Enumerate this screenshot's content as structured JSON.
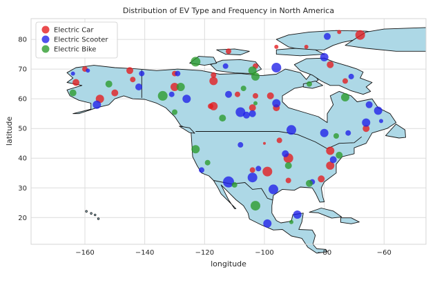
{
  "chart_data": {
    "type": "scatter",
    "title": "Distribution of EV Type and Frequency in North America",
    "xlabel": "longitude",
    "ylabel": "latitude",
    "xlim": [
      -178,
      -46
    ],
    "ylim": [
      11,
      87
    ],
    "xticks": [
      -160,
      -140,
      -120,
      -100,
      -80,
      -60
    ],
    "yticks": [
      20,
      30,
      40,
      50,
      60,
      70,
      80
    ],
    "grid": true,
    "legend_position": "top-left",
    "land_color": "#add8e6",
    "series": [
      {
        "name": "Electric Car",
        "color": "#e41a1c",
        "points": [
          {
            "lon": -68,
            "lat": 81.5,
            "size": 7
          },
          {
            "lon": -75,
            "lat": 82.5,
            "size": 3
          },
          {
            "lon": -96,
            "lat": 77.5,
            "size": 3
          },
          {
            "lon": -86,
            "lat": 77.5,
            "size": 3
          },
          {
            "lon": -112,
            "lat": 76,
            "size": 4
          },
          {
            "lon": -103,
            "lat": 71,
            "size": 4
          },
          {
            "lon": -78,
            "lat": 71.5,
            "size": 5
          },
          {
            "lon": -160,
            "lat": 70,
            "size": 4
          },
          {
            "lon": -145,
            "lat": 69.5,
            "size": 5
          },
          {
            "lon": -130,
            "lat": 68.5,
            "size": 4
          },
          {
            "lon": -117,
            "lat": 68,
            "size": 4
          },
          {
            "lon": -144,
            "lat": 66.5,
            "size": 4
          },
          {
            "lon": -117,
            "lat": 66,
            "size": 6
          },
          {
            "lon": -73,
            "lat": 66,
            "size": 4
          },
          {
            "lon": -163,
            "lat": 65.5,
            "size": 5
          },
          {
            "lon": -130,
            "lat": 64,
            "size": 6
          },
          {
            "lon": -150,
            "lat": 62,
            "size": 5
          },
          {
            "lon": -109,
            "lat": 61.5,
            "size": 4
          },
          {
            "lon": -103,
            "lat": 61,
            "size": 4
          },
          {
            "lon": -98,
            "lat": 61,
            "size": 5
          },
          {
            "lon": -155,
            "lat": 60,
            "size": 6
          },
          {
            "lon": -104,
            "lat": 57,
            "size": 5
          },
          {
            "lon": -96,
            "lat": 57,
            "size": 5
          },
          {
            "lon": -118,
            "lat": 57.5,
            "size": 4
          },
          {
            "lon": -117,
            "lat": 57.5,
            "size": 6
          },
          {
            "lon": -95,
            "lat": 46,
            "size": 4
          },
          {
            "lon": -100,
            "lat": 45,
            "size": 2
          },
          {
            "lon": -92,
            "lat": 40,
            "size": 7
          },
          {
            "lon": -78,
            "lat": 42.5,
            "size": 6
          },
          {
            "lon": -78,
            "lat": 37.5,
            "size": 6
          },
          {
            "lon": -99,
            "lat": 35.5,
            "size": 7
          },
          {
            "lon": -104,
            "lat": 36,
            "size": 4
          },
          {
            "lon": -81,
            "lat": 33,
            "size": 5
          },
          {
            "lon": -92,
            "lat": 32.5,
            "size": 4
          },
          {
            "lon": -66,
            "lat": 50,
            "size": 5
          }
        ]
      },
      {
        "name": "Electric Scooter",
        "color": "#1f1fe8",
        "points": [
          {
            "lon": -79,
            "lat": 81,
            "size": 5
          },
          {
            "lon": -80,
            "lat": 74,
            "size": 6
          },
          {
            "lon": -113,
            "lat": 71,
            "size": 4
          },
          {
            "lon": -96,
            "lat": 70.5,
            "size": 7
          },
          {
            "lon": -159,
            "lat": 69.5,
            "size": 3
          },
          {
            "lon": -164,
            "lat": 68.5,
            "size": 3
          },
          {
            "lon": -141,
            "lat": 68.5,
            "size": 4
          },
          {
            "lon": -129,
            "lat": 68.5,
            "size": 4
          },
          {
            "lon": -71,
            "lat": 67.5,
            "size": 4
          },
          {
            "lon": -142,
            "lat": 64,
            "size": 5
          },
          {
            "lon": -131,
            "lat": 61.5,
            "size": 4
          },
          {
            "lon": -126,
            "lat": 60,
            "size": 6
          },
          {
            "lon": -112,
            "lat": 61.5,
            "size": 5
          },
          {
            "lon": -96,
            "lat": 58.5,
            "size": 6
          },
          {
            "lon": -156,
            "lat": 58,
            "size": 6
          },
          {
            "lon": -65,
            "lat": 58,
            "size": 5
          },
          {
            "lon": -62,
            "lat": 56,
            "size": 6
          },
          {
            "lon": -108,
            "lat": 55.5,
            "size": 7
          },
          {
            "lon": -106,
            "lat": 54.5,
            "size": 5
          },
          {
            "lon": -104,
            "lat": 55,
            "size": 5
          },
          {
            "lon": -66,
            "lat": 52,
            "size": 6
          },
          {
            "lon": -61,
            "lat": 52.5,
            "size": 3
          },
          {
            "lon": -91,
            "lat": 49.5,
            "size": 7
          },
          {
            "lon": -80,
            "lat": 48.5,
            "size": 6
          },
          {
            "lon": -72,
            "lat": 48.5,
            "size": 4
          },
          {
            "lon": -108,
            "lat": 44.5,
            "size": 4
          },
          {
            "lon": -93,
            "lat": 41.5,
            "size": 5
          },
          {
            "lon": -77,
            "lat": 39.5,
            "size": 5
          },
          {
            "lon": -121,
            "lat": 36,
            "size": 4
          },
          {
            "lon": -102,
            "lat": 36.5,
            "size": 4
          },
          {
            "lon": -104,
            "lat": 33.5,
            "size": 7
          },
          {
            "lon": -112,
            "lat": 32,
            "size": 8
          },
          {
            "lon": -97,
            "lat": 29.5,
            "size": 7
          },
          {
            "lon": -84,
            "lat": 32,
            "size": 4
          },
          {
            "lon": -89,
            "lat": 21,
            "size": 6
          },
          {
            "lon": -99,
            "lat": 18,
            "size": 6
          }
        ]
      },
      {
        "name": "Electric Bike",
        "color": "#2a9a2a",
        "points": [
          {
            "lon": -123,
            "lat": 72.5,
            "size": 7
          },
          {
            "lon": -104,
            "lat": 69.5,
            "size": 6
          },
          {
            "lon": -103,
            "lat": 67.5,
            "size": 6
          },
          {
            "lon": -152,
            "lat": 65,
            "size": 5
          },
          {
            "lon": -85,
            "lat": 65,
            "size": 4
          },
          {
            "lon": -128,
            "lat": 64,
            "size": 6
          },
          {
            "lon": -107,
            "lat": 63.5,
            "size": 4
          },
          {
            "lon": -164,
            "lat": 62,
            "size": 5
          },
          {
            "lon": -134,
            "lat": 61,
            "size": 7
          },
          {
            "lon": -73,
            "lat": 60.5,
            "size": 6
          },
          {
            "lon": -103,
            "lat": 58.5,
            "size": 3
          },
          {
            "lon": -130,
            "lat": 55.5,
            "size": 4
          },
          {
            "lon": -114,
            "lat": 53.5,
            "size": 5
          },
          {
            "lon": -76,
            "lat": 47.5,
            "size": 4
          },
          {
            "lon": -123,
            "lat": 43,
            "size": 6
          },
          {
            "lon": -92,
            "lat": 37.5,
            "size": 5
          },
          {
            "lon": -119,
            "lat": 38.5,
            "size": 4
          },
          {
            "lon": -75,
            "lat": 41,
            "size": 5
          },
          {
            "lon": -110,
            "lat": 31,
            "size": 4
          },
          {
            "lon": -85,
            "lat": 31.5,
            "size": 5
          },
          {
            "lon": -103,
            "lat": 24,
            "size": 7
          },
          {
            "lon": -91,
            "lat": 18.5,
            "size": 3
          }
        ]
      }
    ]
  }
}
